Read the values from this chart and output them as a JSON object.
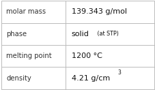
{
  "rows": [
    {
      "label": "molar mass",
      "value": "139.343 g/mol",
      "type": "plain"
    },
    {
      "label": "phase",
      "value": "solid",
      "suffix": " (at STP)",
      "type": "suffix"
    },
    {
      "label": "melting point",
      "value": "1200 °C",
      "type": "plain"
    },
    {
      "label": "density",
      "value": "4.21 g/cm",
      "superscript": "3",
      "type": "super"
    }
  ],
  "col_split": 0.42,
  "background_color": "#ffffff",
  "border_color": "#bbbbbb",
  "label_fontsize": 7.2,
  "value_fontsize": 8.0,
  "suffix_fontsize": 5.8,
  "super_fontsize": 5.5,
  "label_color": "#333333",
  "value_color": "#111111",
  "font_family": "DejaVu Sans"
}
